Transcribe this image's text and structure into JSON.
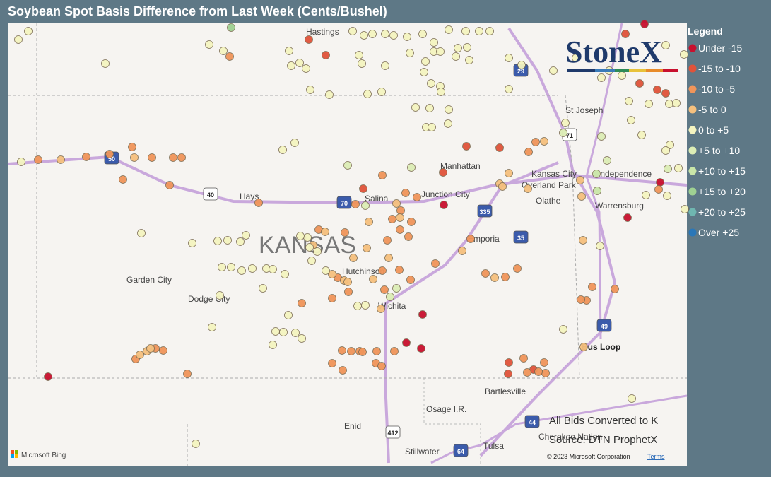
{
  "header": {
    "title": "Soybean Spot Basis Difference from Last Week (Cents/Bushel)"
  },
  "legend": {
    "title": "Legend",
    "items": [
      {
        "label": "Under -15",
        "color": "#c8102e"
      },
      {
        "label": "-15 to -10",
        "color": "#e0533a"
      },
      {
        "label": "-10 to -5",
        "color": "#f0955a"
      },
      {
        "label": "-5 to 0",
        "color": "#f5c07e"
      },
      {
        "label": "0 to +5",
        "color": "#f4f4c0"
      },
      {
        "label": "+5 to +10",
        "color": "#dcedb5"
      },
      {
        "label": "+10 to +15",
        "color": "#c9e6a8"
      },
      {
        "label": "+15 to +20",
        "color": "#9fd192"
      },
      {
        "label": "+20 to +25",
        "color": "#6fb6b0"
      },
      {
        "label": "Over +25",
        "color": "#2a77b8"
      }
    ]
  },
  "map": {
    "state_label": "KANSAS",
    "places": [
      "Hastings",
      "St Joseph",
      "Manhattan",
      "Kansas City",
      "Independence",
      "Overland Park",
      "Olathe",
      "Junction City",
      "Salina",
      "Hays",
      "Warrensburg",
      "Emporia",
      "Hutchinson",
      "Garden City",
      "Dodge City",
      "Wichita",
      "Bus Loop",
      "Bartlesville",
      "Osage I.R.",
      "Enid",
      "Stillwater",
      "Tulsa",
      "Cherokee Nation"
    ],
    "shields": [
      "29",
      "71",
      "70",
      "40",
      "335",
      "35",
      "49",
      "44",
      "412",
      "64",
      "50"
    ]
  },
  "logo": "StoneX",
  "notes": [
    "All Bids Converted to K",
    "Source: DTN ProphetX"
  ],
  "footer": {
    "provider": "Microsoft Bing",
    "copyright": "© 2023 Microsoft Corporation",
    "terms": "Terms"
  }
}
